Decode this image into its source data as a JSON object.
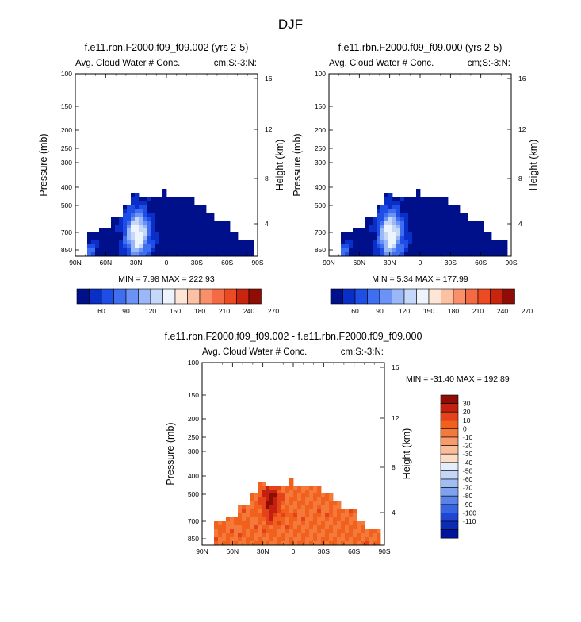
{
  "figure": {
    "title": "DJF"
  },
  "panels": [
    {
      "id": "top-left",
      "title": "f.e11.rbn.F2000.f09_f09.002 (yrs 2-5)",
      "left_label": "Avg. Cloud Water # Conc.",
      "right_label": "cm;S:-3:N:",
      "ylabel": "Pressure (mb)",
      "ylabel_right": "Height (km)",
      "stats": "MIN =   7.98  MAX = 222.93"
    },
    {
      "id": "top-right",
      "title": "f.e11.rbn.F2000.f09_f09.000 (yrs 2-5)",
      "left_label": "Avg. Cloud Water # Conc.",
      "right_label": "cm;S:-3:N:",
      "ylabel": "Pressure (mb)",
      "ylabel_right": "Height (km)",
      "stats": "MIN =   5.34  MAX = 177.99"
    },
    {
      "id": "bottom",
      "title": "f.e11.rbn.F2000.f09_f09.002 - f.e11.rbn.F2000.f09_f09.000",
      "left_label": "Avg. Cloud Water # Conc.",
      "right_label": "cm;S:-3:N:",
      "ylabel": "Pressure (mb)",
      "ylabel_right": "Height (km)",
      "stats": "MIN = -31.40  MAX = 192.89"
    }
  ],
  "chart_data": [
    {
      "type": "heatmap",
      "panel": "top-left",
      "x_tick_labels": [
        "90N",
        "60N",
        "30N",
        "0",
        "30S",
        "60S",
        "90S"
      ],
      "x_range": [
        90,
        -90
      ],
      "y_tick_labels": [
        "100",
        "150",
        "200",
        "250",
        "300",
        "400",
        "500",
        "700",
        "850"
      ],
      "y_range_mb": [
        100,
        1000
      ],
      "y_right_tick_labels": [
        "16",
        "12",
        "8",
        "4"
      ],
      "min": 7.98,
      "max": 222.93,
      "colorbar_labels": [
        "60",
        "90",
        "120",
        "150",
        "180",
        "210",
        "240",
        "270"
      ]
    },
    {
      "type": "heatmap",
      "panel": "top-right",
      "x_tick_labels": [
        "90N",
        "60N",
        "30N",
        "0",
        "30S",
        "60S",
        "90S"
      ],
      "x_range": [
        90,
        -90
      ],
      "y_tick_labels": [
        "100",
        "150",
        "200",
        "250",
        "300",
        "400",
        "500",
        "700",
        "850"
      ],
      "y_range_mb": [
        100,
        1000
      ],
      "y_right_tick_labels": [
        "16",
        "12",
        "8",
        "4"
      ],
      "min": 5.34,
      "max": 177.99,
      "colorbar_labels": [
        "60",
        "90",
        "120",
        "150",
        "180",
        "210",
        "240",
        "270"
      ]
    },
    {
      "type": "heatmap",
      "panel": "bottom",
      "x_tick_labels": [
        "90N",
        "60N",
        "30N",
        "0",
        "30S",
        "60S",
        "90S"
      ],
      "x_range": [
        90,
        -90
      ],
      "y_tick_labels": [
        "100",
        "150",
        "200",
        "250",
        "300",
        "400",
        "500",
        "700",
        "850"
      ],
      "y_range_mb": [
        100,
        1000
      ],
      "y_right_tick_labels": [
        "16",
        "12",
        "8",
        "4"
      ],
      "min": -31.4,
      "max": 192.89,
      "colorbar_labels": [
        "30",
        "20",
        "10",
        "0",
        "-10",
        "-20",
        "-30",
        "-40",
        "-50",
        "-60",
        "-70",
        "-80",
        "-90",
        "-100",
        "-110"
      ]
    }
  ],
  "colors": {
    "abs_scale": [
      "#00108a",
      "#0a2fc8",
      "#1f4ee6",
      "#3f6ff0",
      "#6b93f5",
      "#9ab7f7",
      "#c5d8fa",
      "#eef4fd",
      "#fde6d6",
      "#fcc1a3",
      "#f9906a",
      "#f46a45",
      "#ec4a21",
      "#c9250e",
      "#8f0d05"
    ],
    "diff_scale": [
      "#8f0d05",
      "#c32010",
      "#e5421c",
      "#f2601e",
      "#f47a3c",
      "#f79a6c",
      "#fabd98",
      "#fddcc6",
      "#e4eefb",
      "#c3d6f7",
      "#a0bdf4",
      "#7ea2ef",
      "#5a83ea",
      "#3a65e2",
      "#1f45d2",
      "#0c2cb8",
      "#00159a"
    ]
  }
}
